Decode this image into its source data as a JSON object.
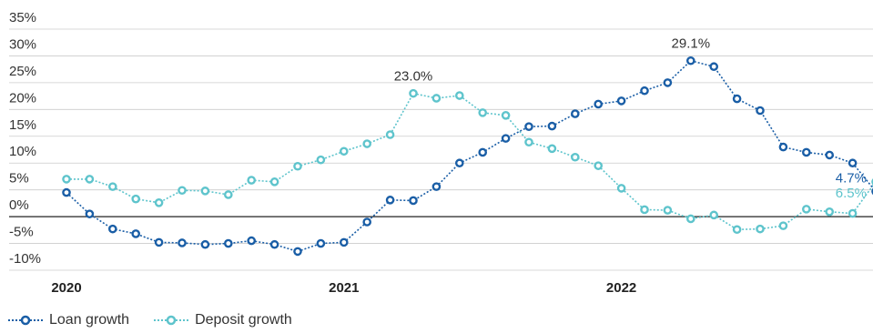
{
  "chart_data": {
    "type": "line",
    "title": "",
    "xlabel": "",
    "ylabel": "",
    "ylim": [
      -10,
      35
    ],
    "yticks": [
      35,
      30,
      25,
      20,
      15,
      10,
      5,
      0,
      -5,
      -10
    ],
    "ytick_labels": [
      "35%",
      "30%",
      "25%",
      "20%",
      "15%",
      "10%",
      "5%",
      "0%",
      "-5%",
      "-10%"
    ],
    "x_year_labels": [
      {
        "label": "2020",
        "index": 0
      },
      {
        "label": "2021",
        "index": 12
      },
      {
        "label": "2022",
        "index": 24
      }
    ],
    "grid": true,
    "legend_position": "bottom-left",
    "series": [
      {
        "name": "Loan growth",
        "color": "#1a5ea6",
        "values": [
          4.5,
          0.5,
          -2.3,
          -3.2,
          -4.8,
          -4.9,
          -5.2,
          -5.0,
          -4.5,
          -5.2,
          -6.5,
          -5.0,
          -4.8,
          -1.0,
          3.1,
          3.0,
          5.6,
          10.0,
          12.0,
          14.6,
          16.8,
          16.9,
          19.2,
          21.0,
          21.6,
          23.5,
          25.0,
          29.1,
          28.0,
          22.0,
          19.8,
          13.0,
          12.0,
          11.5,
          10.0,
          4.7
        ],
        "labels": [
          {
            "index": 27,
            "text": "29.1%"
          },
          {
            "index": 35,
            "text": "4.7%"
          }
        ]
      },
      {
        "name": "Deposit growth",
        "color": "#5ec4cc",
        "values": [
          7.0,
          7.0,
          5.6,
          3.3,
          2.6,
          4.9,
          4.8,
          4.1,
          6.8,
          6.5,
          9.4,
          10.6,
          12.2,
          13.6,
          15.3,
          23.0,
          22.1,
          22.6,
          19.4,
          18.9,
          13.9,
          12.7,
          11.1,
          9.5,
          5.3,
          1.3,
          1.2,
          -0.4,
          0.3,
          -2.4,
          -2.3,
          -1.7,
          1.4,
          0.9,
          0.6,
          6.5
        ],
        "labels": [
          {
            "index": 15,
            "text": "23.0%"
          },
          {
            "index": 35,
            "text": "6.5%"
          }
        ]
      }
    ]
  }
}
